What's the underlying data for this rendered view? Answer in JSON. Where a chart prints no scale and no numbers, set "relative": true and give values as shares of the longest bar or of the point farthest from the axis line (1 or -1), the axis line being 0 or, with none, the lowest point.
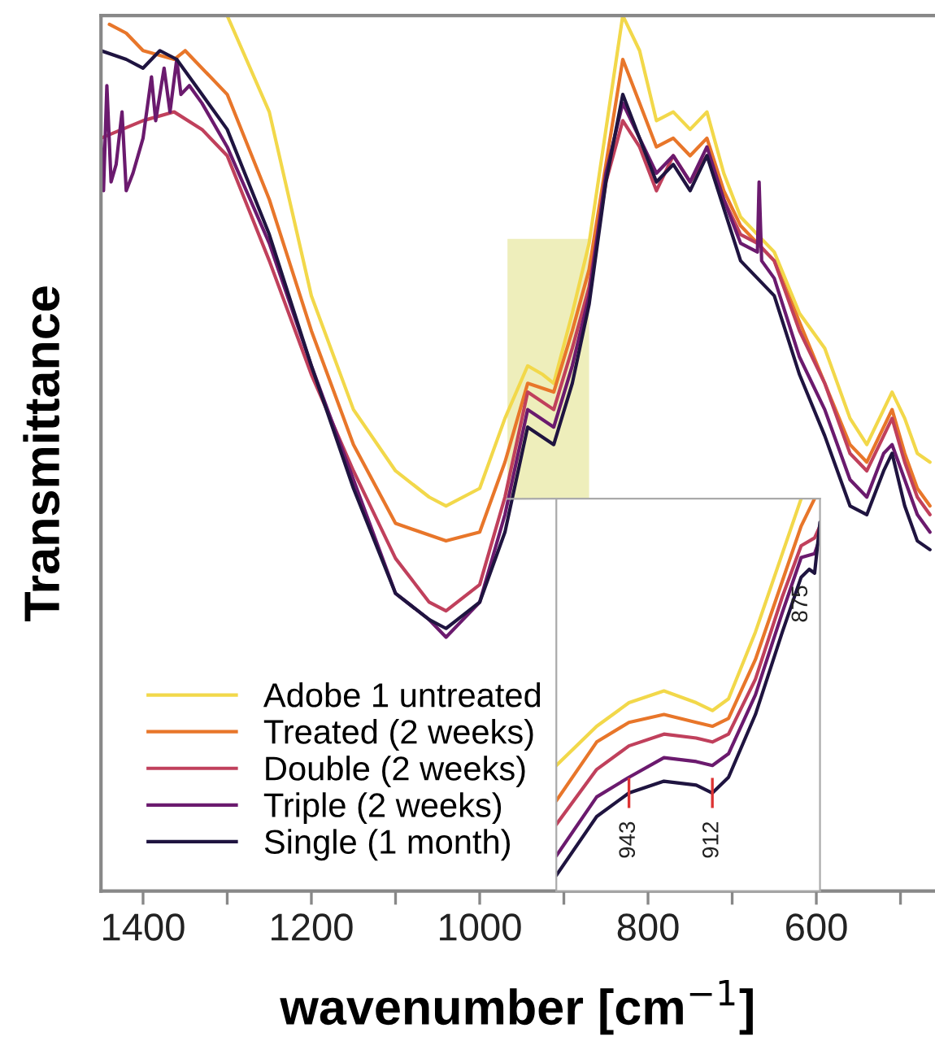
{
  "chart_data": [
    {
      "type": "line",
      "relative": true,
      "xlabel": "wavenumber [cm$^{−1}$]",
      "ylabel": "Transmittance",
      "xlim": [
        1450,
        459
      ],
      "xticks": [
        1400,
        {
          "value": 1300,
          "label": null
        },
        1200,
        {
          "value": 1100,
          "label": null
        },
        1000,
        {
          "value": 900,
          "label": null
        },
        800,
        {
          "value": 700,
          "label": null
        },
        600,
        {
          "value": 500,
          "label": null
        }
      ],
      "tick_labels": "x",
      "legend": "bottom left",
      "grid": false,
      "bands": [
        {
          "axis": "x",
          "from": 967,
          "to": 870,
          "color": "#eeeebb"
        }
      ],
      "series": [
        {
          "name": "Adobe 1 untreated",
          "color": "#f2d84a",
          "x": [
            1300,
            1250,
            1200,
            1150,
            1100,
            1060,
            1040,
            1000,
            970,
            943,
            925,
            912,
            890,
            870,
            850,
            830,
            810,
            790,
            770,
            750,
            730,
            710,
            690,
            670,
            650,
            620,
            590,
            560,
            540,
            520,
            510,
            495,
            480,
            465
          ],
          "values": [
            1.0,
            0.89,
            0.68,
            0.55,
            0.48,
            0.45,
            0.44,
            0.46,
            0.54,
            0.6,
            0.59,
            0.58,
            0.66,
            0.74,
            0.87,
            1.0,
            0.96,
            0.88,
            0.89,
            0.87,
            0.89,
            0.82,
            0.77,
            0.75,
            0.73,
            0.66,
            0.62,
            0.54,
            0.51,
            0.55,
            0.57,
            0.54,
            0.5,
            0.49
          ]
        },
        {
          "name": "Treated (2 weeks)",
          "color": "#e8762a",
          "x": [
            1440,
            1420,
            1400,
            1363,
            1350,
            1300,
            1250,
            1200,
            1150,
            1100,
            1040,
            1000,
            970,
            943,
            912,
            890,
            870,
            850,
            830,
            810,
            790,
            770,
            750,
            730,
            710,
            690,
            670,
            650,
            620,
            590,
            560,
            540,
            520,
            510,
            495,
            480,
            465
          ],
          "values": [
            0.99,
            0.98,
            0.96,
            0.95,
            0.96,
            0.91,
            0.79,
            0.64,
            0.51,
            0.42,
            0.4,
            0.41,
            0.49,
            0.58,
            0.57,
            0.64,
            0.71,
            0.83,
            0.95,
            0.9,
            0.85,
            0.86,
            0.84,
            0.86,
            0.8,
            0.76,
            0.74,
            0.72,
            0.65,
            0.58,
            0.51,
            0.49,
            0.53,
            0.55,
            0.5,
            0.46,
            0.44
          ]
        },
        {
          "name": "Double (2 weeks)",
          "color": "#c0405c",
          "x": [
            1450,
            1400,
            1363,
            1330,
            1300,
            1250,
            1200,
            1150,
            1100,
            1060,
            1040,
            1000,
            970,
            943,
            912,
            890,
            870,
            850,
            830,
            810,
            790,
            770,
            750,
            730,
            710,
            690,
            670,
            650,
            620,
            590,
            560,
            540,
            520,
            510,
            495,
            480,
            465
          ],
          "values": [
            0.86,
            0.88,
            0.89,
            0.87,
            0.84,
            0.72,
            0.59,
            0.48,
            0.38,
            0.33,
            0.32,
            0.35,
            0.45,
            0.57,
            0.55,
            0.62,
            0.69,
            0.81,
            0.88,
            0.85,
            0.8,
            0.84,
            0.81,
            0.84,
            0.79,
            0.75,
            0.74,
            0.72,
            0.64,
            0.58,
            0.5,
            0.48,
            0.52,
            0.54,
            0.49,
            0.45,
            0.43
          ]
        },
        {
          "name": "Triple (2 weeks)",
          "color": "#6b1a6e",
          "x": [
            1450,
            1447,
            1443,
            1438,
            1432,
            1425,
            1420,
            1412,
            1400,
            1390,
            1385,
            1375,
            1368,
            1360,
            1355,
            1345,
            1330,
            1300,
            1250,
            1200,
            1150,
            1100,
            1060,
            1040,
            1000,
            970,
            943,
            912,
            890,
            870,
            850,
            830,
            810,
            790,
            770,
            750,
            730,
            710,
            690,
            670,
            668,
            665,
            650,
            620,
            590,
            560,
            540,
            520,
            510,
            495,
            480,
            465
          ],
          "values": [
            0.86,
            0.8,
            0.92,
            0.81,
            0.83,
            0.89,
            0.8,
            0.82,
            0.86,
            0.93,
            0.88,
            0.94,
            0.89,
            0.95,
            0.91,
            0.92,
            0.9,
            0.85,
            0.74,
            0.6,
            0.47,
            0.34,
            0.31,
            0.29,
            0.33,
            0.43,
            0.55,
            0.53,
            0.6,
            0.68,
            0.82,
            0.9,
            0.86,
            0.82,
            0.84,
            0.81,
            0.85,
            0.79,
            0.74,
            0.73,
            0.81,
            0.72,
            0.7,
            0.61,
            0.55,
            0.47,
            0.45,
            0.5,
            0.51,
            0.47,
            0.43,
            0.41
          ]
        },
        {
          "name": "Single (1 month)",
          "color": "#1f1440",
          "x": [
            1450,
            1420,
            1400,
            1380,
            1360,
            1330,
            1300,
            1250,
            1200,
            1150,
            1100,
            1060,
            1040,
            1000,
            970,
            943,
            912,
            890,
            870,
            850,
            830,
            810,
            790,
            770,
            750,
            730,
            710,
            690,
            670,
            650,
            620,
            590,
            560,
            540,
            520,
            510,
            495,
            480,
            465
          ],
          "values": [
            0.96,
            0.95,
            0.94,
            0.96,
            0.95,
            0.91,
            0.87,
            0.75,
            0.6,
            0.46,
            0.34,
            0.31,
            0.3,
            0.33,
            0.41,
            0.53,
            0.51,
            0.58,
            0.67,
            0.81,
            0.91,
            0.86,
            0.81,
            0.83,
            0.8,
            0.84,
            0.78,
            0.72,
            0.7,
            0.68,
            0.59,
            0.52,
            0.44,
            0.43,
            0.48,
            0.5,
            0.44,
            0.4,
            0.39
          ]
        }
      ]
    },
    {
      "type": "line",
      "relative": true,
      "xlim": [
        970,
        872
      ],
      "xticks": [
        943,
        912
      ],
      "tick_labels": "x",
      "grid": false,
      "annotations": [
        {
          "text": "875",
          "x": 875,
          "y": 0.82
        }
      ],
      "series": [
        {
          "color": "#f2d84a",
          "x": [
            970,
            955,
            943,
            930,
            918,
            912,
            906,
            896,
            886,
            879
          ],
          "values": [
            0.32,
            0.42,
            0.48,
            0.51,
            0.48,
            0.46,
            0.49,
            0.66,
            0.86,
            1.0
          ]
        },
        {
          "color": "#e8762a",
          "x": [
            970,
            955,
            943,
            930,
            918,
            912,
            906,
            896,
            886,
            879,
            874
          ],
          "values": [
            0.23,
            0.38,
            0.43,
            0.45,
            0.43,
            0.42,
            0.44,
            0.59,
            0.79,
            0.93,
            1.0
          ]
        },
        {
          "color": "#c0405c",
          "x": [
            970,
            955,
            943,
            930,
            918,
            912,
            906,
            896,
            886,
            879,
            874,
            872
          ],
          "values": [
            0.17,
            0.31,
            0.37,
            0.4,
            0.39,
            0.38,
            0.4,
            0.54,
            0.75,
            0.88,
            0.9,
            0.93
          ]
        },
        {
          "color": "#6b1a6e",
          "x": [
            970,
            955,
            943,
            930,
            918,
            912,
            906,
            896,
            886,
            879,
            874,
            872
          ],
          "values": [
            0.09,
            0.24,
            0.29,
            0.34,
            0.33,
            0.32,
            0.35,
            0.5,
            0.71,
            0.85,
            0.86,
            0.9
          ]
        },
        {
          "color": "#1f1440",
          "x": [
            970,
            955,
            943,
            930,
            918,
            912,
            906,
            896,
            886,
            879,
            876,
            874,
            872
          ],
          "values": [
            0.04,
            0.19,
            0.25,
            0.28,
            0.27,
            0.25,
            0.29,
            0.45,
            0.66,
            0.8,
            0.82,
            0.81,
            0.94
          ]
        }
      ]
    }
  ]
}
